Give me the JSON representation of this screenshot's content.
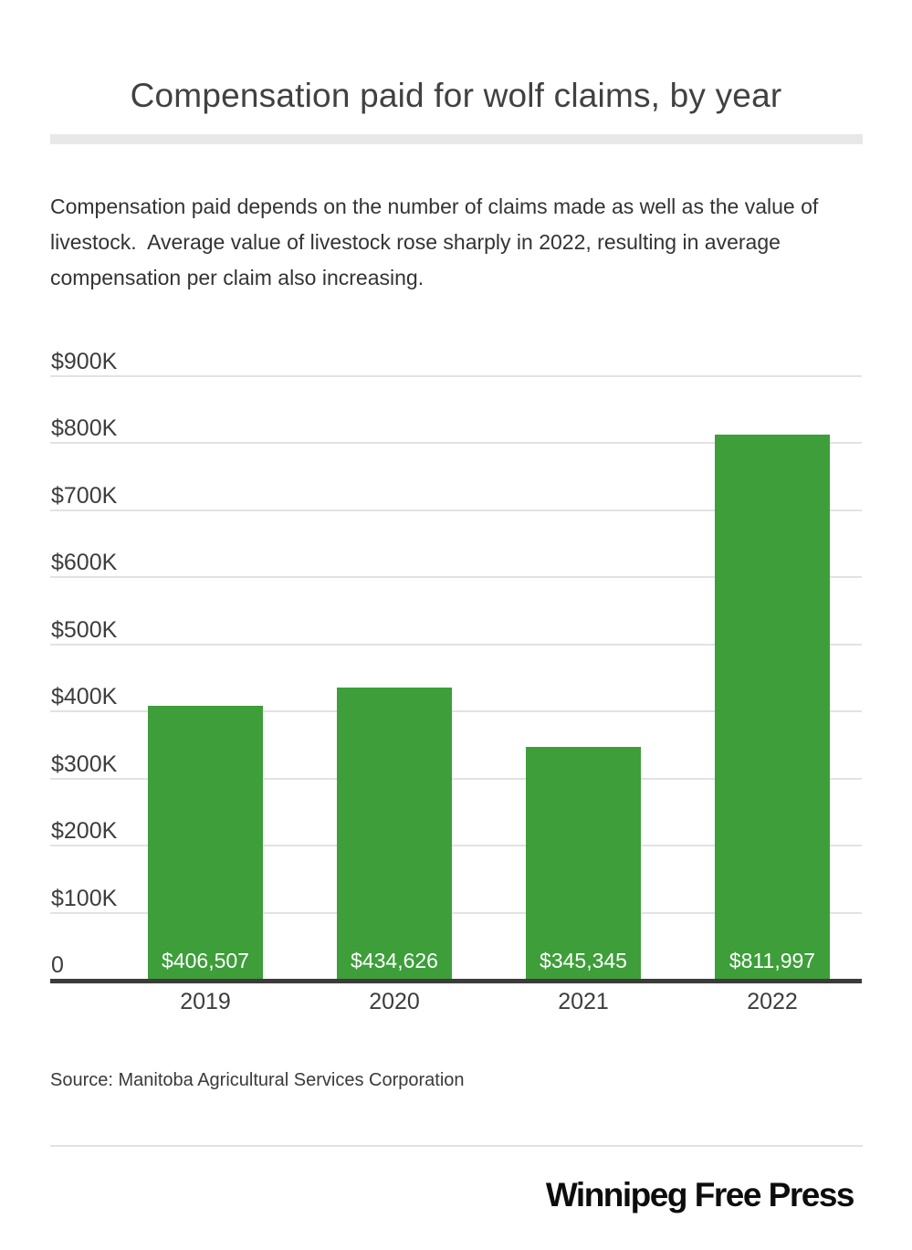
{
  "chart_data": {
    "type": "bar",
    "title": "Compensation paid for wolf claims, by year",
    "subtitle": "Compensation paid depends on the number of claims made as well as the value of livestock.  Average value of livestock rose sharply in 2022, resulting in average compensation per claim also increasing.",
    "categories": [
      "2019",
      "2020",
      "2021",
      "2022"
    ],
    "values": [
      406507,
      434626,
      345345,
      811997
    ],
    "value_labels": [
      "$406,507",
      "$434,626",
      "$345,345",
      "$811,997"
    ],
    "y_ticks": [
      {
        "value": 900000,
        "label": "$900K"
      },
      {
        "value": 800000,
        "label": "$800K"
      },
      {
        "value": 700000,
        "label": "$700K"
      },
      {
        "value": 600000,
        "label": "$600K"
      },
      {
        "value": 500000,
        "label": "$500K"
      },
      {
        "value": 400000,
        "label": "$400K"
      },
      {
        "value": 300000,
        "label": "$300K"
      },
      {
        "value": 200000,
        "label": "$200K"
      },
      {
        "value": 100000,
        "label": "$100K"
      },
      {
        "value": 0,
        "label": "0"
      }
    ],
    "ylim": [
      0,
      900000
    ],
    "xlabel": "",
    "ylabel": "",
    "grid": true,
    "legend": "none",
    "bar_color": "#3d9e3a"
  },
  "description": {
    "lines": [
      "Compensation paid depends on the number of claims made as well as the value of",
      "livestock.  Average value of livestock rose sharply in 2022, resulting in average",
      "compensation per claim also increasing."
    ]
  },
  "source_text": "Source: Manitoba Agricultural Services Corporation",
  "footer": {
    "brand": "Winnipeg Free Press"
  },
  "colors": {
    "bar_green": "#3d9e3a",
    "text_dark": "#3d3d3d",
    "gridline": "#e2e2e2",
    "divider": "#e8e8e8",
    "baseline": "#3b3b3b",
    "background": "#ffffff"
  }
}
